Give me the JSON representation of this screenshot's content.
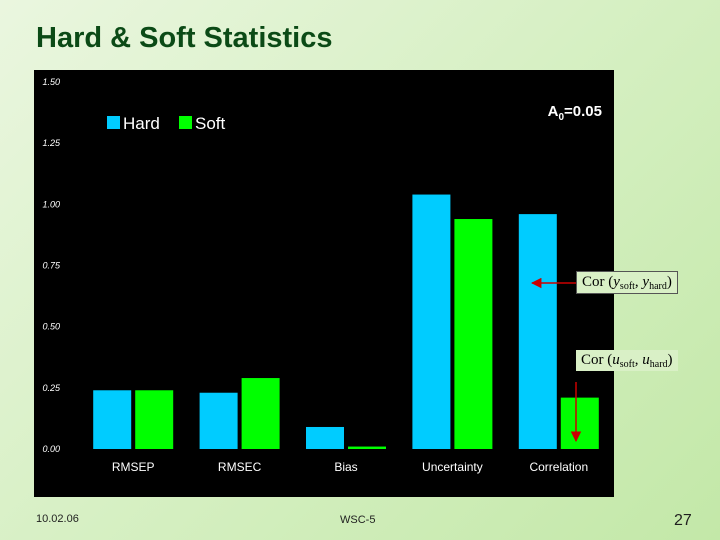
{
  "slide": {
    "title": "Hard & Soft Statistics",
    "footer_date": "10.02.06",
    "footer_event": "WSC-5",
    "page_number": "27"
  },
  "chart_data": {
    "type": "bar",
    "categories": [
      "RMSEP",
      "RMSEC",
      "Bias",
      "Uncertainty",
      "Correlation"
    ],
    "series": [
      {
        "name": "Hard",
        "color": "#00ccff",
        "values": [
          0.24,
          0.23,
          0.09,
          1.04,
          0.96
        ]
      },
      {
        "name": "Soft",
        "color": "#00ff00",
        "values": [
          0.24,
          0.29,
          0.01,
          0.94,
          0.21
        ]
      }
    ],
    "ylim": [
      0,
      1.5
    ],
    "yticks": [
      "0.00",
      "0.25",
      "0.50",
      "0.75",
      "1.00",
      "1.25",
      "1.50"
    ],
    "legend_position": "top-left",
    "grid": false,
    "background": "#000000"
  },
  "annotations": {
    "param_label": {
      "main": "A",
      "sub": "0",
      "value": "=0.05"
    },
    "cor_y": {
      "prefix": "Cor (",
      "v1": "y",
      "s1": "soft",
      "sep": ", ",
      "v2": "y",
      "s2": "hard",
      "suffix": ")"
    },
    "cor_u": {
      "prefix": "Cor (",
      "v1": "u",
      "s1": "soft",
      "sep": ", ",
      "v2": "u",
      "s2": "hard",
      "suffix": ")"
    },
    "arrow_color": "#cc0000"
  }
}
